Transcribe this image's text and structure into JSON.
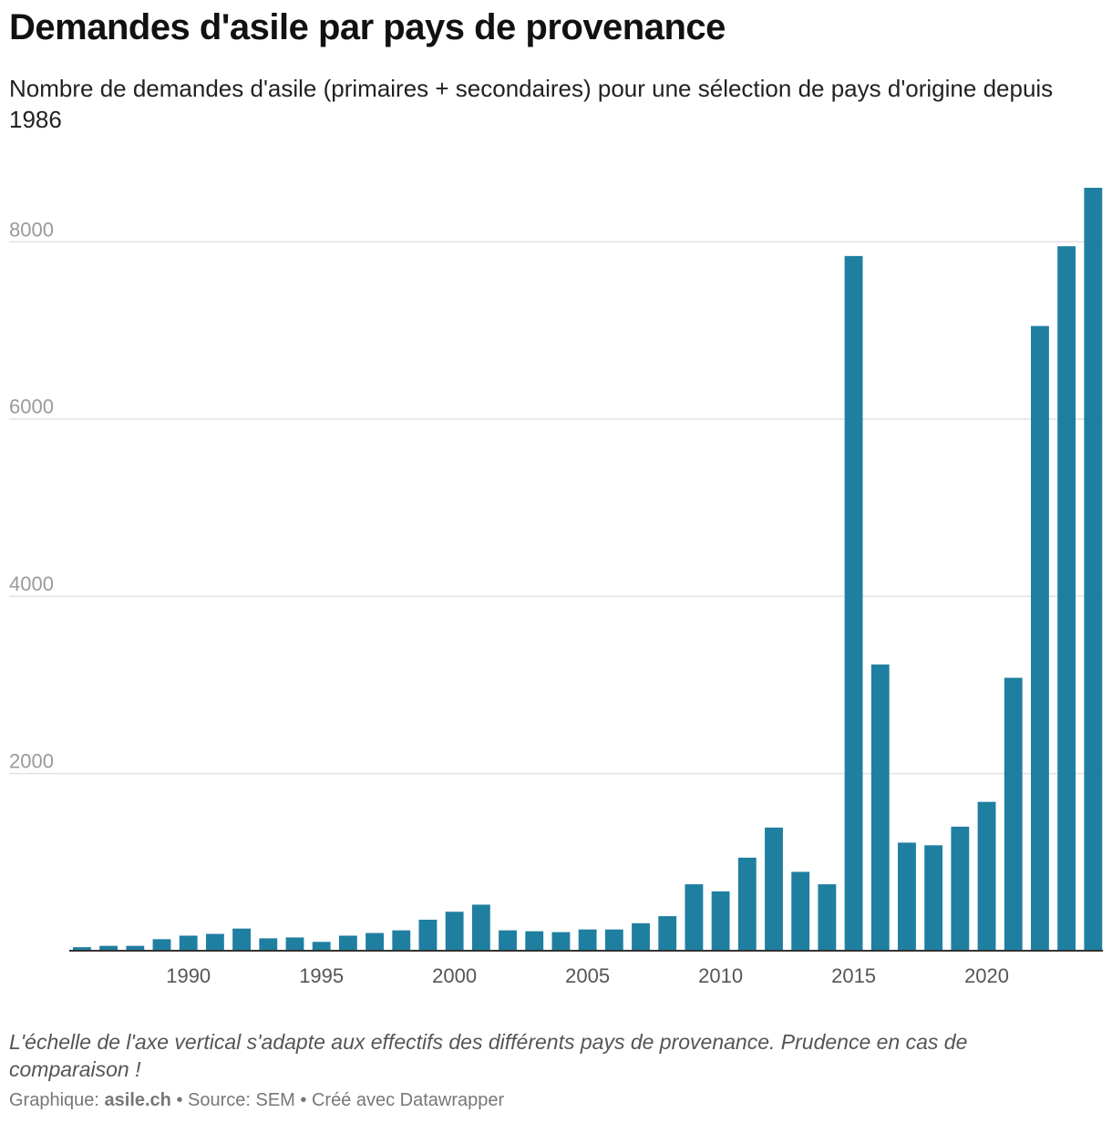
{
  "header": {
    "title": "Demandes d'asile par pays de provenance",
    "subtitle": "Nombre de demandes d'asile (primaires + secondaires) pour une sélection de pays d'origine depuis 1986"
  },
  "footer": {
    "note": "L'échelle de l'axe vertical s'adapte aux effectifs des différents pays de provenance. Prudence en cas de comparaison !",
    "credit_prefix": "Graphique: ",
    "credit_name": "asile.ch",
    "source_text": " • Source: SEM • Créé avec Datawrapper"
  },
  "colors": {
    "bar": "#1f7fa1",
    "grid": "#e3e3e3",
    "axis": "#333333"
  },
  "chart_data": {
    "type": "bar",
    "title": "Demandes d'asile par pays de provenance",
    "xlabel": "",
    "ylabel": "",
    "x": [
      1986,
      1987,
      1988,
      1989,
      1990,
      1991,
      1992,
      1993,
      1994,
      1995,
      1996,
      1997,
      1998,
      1999,
      2000,
      2001,
      2002,
      2003,
      2004,
      2005,
      2006,
      2007,
      2008,
      2009,
      2010,
      2011,
      2012,
      2013,
      2014,
      2015,
      2016,
      2017,
      2018,
      2019,
      2020,
      2021,
      2022,
      2023,
      2024
    ],
    "values": [
      40,
      55,
      55,
      130,
      170,
      190,
      250,
      140,
      150,
      100,
      170,
      200,
      230,
      350,
      440,
      520,
      230,
      220,
      210,
      240,
      240,
      310,
      390,
      750,
      670,
      1050,
      1390,
      890,
      750,
      7840,
      3230,
      1220,
      1190,
      1400,
      1680,
      3080,
      7050,
      7950,
      8610
    ],
    "ylim": [
      0,
      8610
    ],
    "yticks": [
      2000,
      4000,
      6000,
      8000
    ],
    "ytick_labels": [
      "2000",
      "4000",
      "6000",
      "8000"
    ],
    "xticks": [
      1990,
      1995,
      2000,
      2005,
      2010,
      2015,
      2020
    ],
    "xtick_labels": [
      "1990",
      "1995",
      "2000",
      "2005",
      "2010",
      "2015",
      "2020"
    ],
    "grid": true,
    "legend": "none"
  }
}
